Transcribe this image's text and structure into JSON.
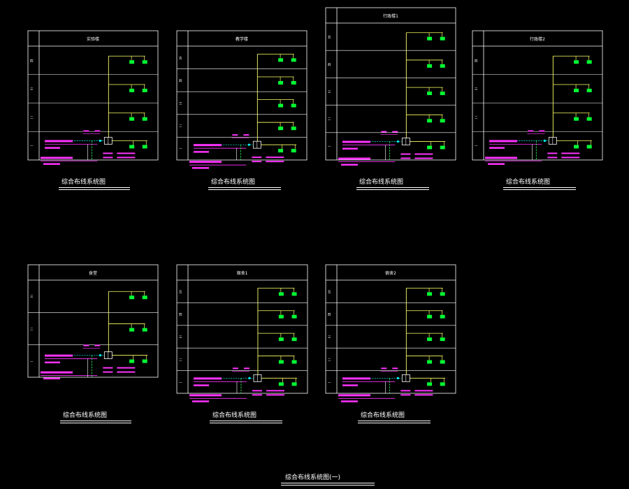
{
  "colors": {
    "background": "#000000",
    "frame": "#ffffff",
    "riser": "#ffff66",
    "outlet": "#00ff33",
    "annotation": "#ff33ff",
    "dashed": "#33ff66",
    "cyan": "#00ffff"
  },
  "panels": [
    {
      "id": "p1",
      "title": "实验楼",
      "floors": [
        "四",
        "三",
        "二",
        "一"
      ],
      "caption": "综合布线系统图"
    },
    {
      "id": "p2",
      "title": "教学楼",
      "floors": [
        "五",
        "四",
        "三",
        "二",
        "一"
      ],
      "caption": "综合布线系统图"
    },
    {
      "id": "p3",
      "title": "行政楼1",
      "floors": [
        "五",
        "四",
        "三",
        "二",
        "一"
      ],
      "caption": "综合布线系统图"
    },
    {
      "id": "p4",
      "title": "行政楼2",
      "floors": [
        "四",
        "三",
        "二",
        "一"
      ],
      "caption": "综合布线系统图"
    },
    {
      "id": "p5",
      "title": "食堂",
      "floors": [
        "三",
        "二",
        "一"
      ],
      "caption": "综合布线系统图"
    },
    {
      "id": "p6",
      "title": "宿舍1",
      "floors": [
        "五",
        "四",
        "三",
        "二",
        "一"
      ],
      "caption": "综合布线系统图"
    },
    {
      "id": "p7",
      "title": "宿舍2",
      "floors": [
        "五",
        "四",
        "三",
        "二",
        "一"
      ],
      "caption": "综合布线系统图"
    }
  ],
  "sheet_title": "综合布线系统图(一)"
}
